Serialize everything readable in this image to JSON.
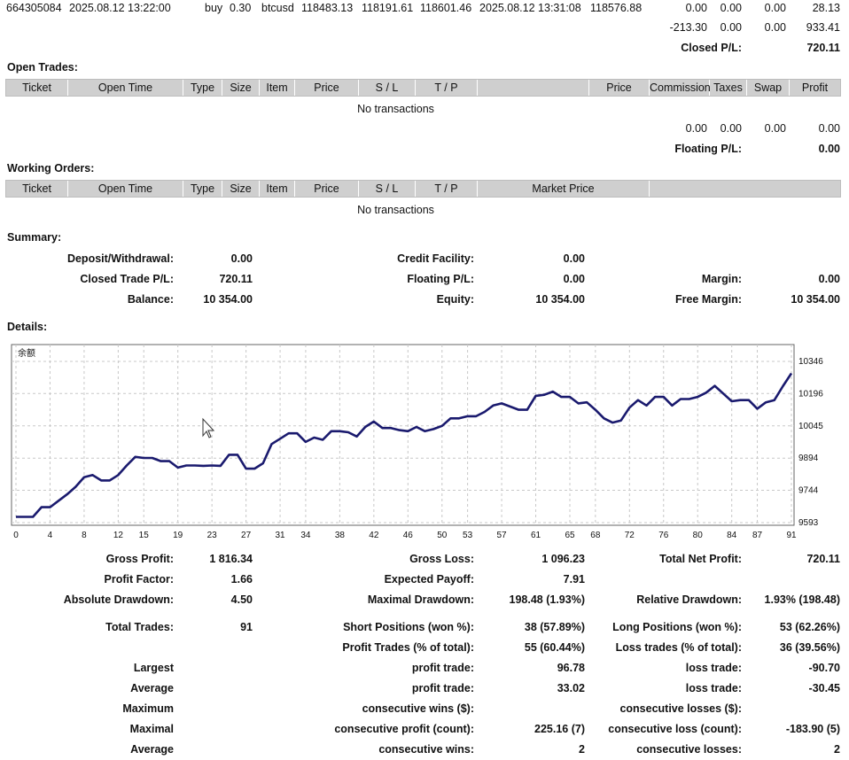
{
  "deal_row": {
    "ticket": "664305084",
    "open_time": "2025.08.12 13:22:00",
    "type": "buy",
    "size": "0.30",
    "item": "btcusd",
    "price": "118483.13",
    "sl": "118191.61",
    "tp": "118601.46",
    "close_time": "2025.08.12 13:31:08",
    "close_price": "118576.88",
    "commission": "0.00",
    "taxes": "0.00",
    "swap": "0.00",
    "profit": "28.13"
  },
  "closed_totals": {
    "commission": "-213.30",
    "taxes": "0.00",
    "swap": "0.00",
    "profit": "933.41",
    "closed_pl_label": "Closed P/L:",
    "closed_pl_value": "720.11"
  },
  "open_trades": {
    "title": "Open Trades:",
    "headers": [
      "Ticket",
      "Open Time",
      "Type",
      "Size",
      "Item",
      "Price",
      "S / L",
      "T / P",
      "",
      "Price",
      "Commission",
      "Taxes",
      "Swap",
      "Profit"
    ],
    "empty_message": "No transactions",
    "totals": {
      "commission": "0.00",
      "taxes": "0.00",
      "swap": "0.00",
      "profit": "0.00"
    },
    "floating_label": "Floating P/L:",
    "floating_value": "0.00"
  },
  "working_orders": {
    "title": "Working Orders:",
    "headers": [
      "Ticket",
      "Open Time",
      "Type",
      "Size",
      "Item",
      "Price",
      "S / L",
      "T / P",
      "Market Price",
      ""
    ],
    "empty_message": "No transactions"
  },
  "summary": {
    "title": "Summary:",
    "deposit_label": "Deposit/Withdrawal:",
    "deposit_value": "0.00",
    "credit_label": "Credit Facility:",
    "credit_value": "0.00",
    "closed_trade_label": "Closed Trade P/L:",
    "closed_trade_value": "720.11",
    "floating_label": "Floating P/L:",
    "floating_value": "0.00",
    "margin_label": "Margin:",
    "margin_value": "0.00",
    "balance_label": "Balance:",
    "balance_value": "10 354.00",
    "equity_label": "Equity:",
    "equity_value": "10 354.00",
    "free_margin_label": "Free Margin:",
    "free_margin_value": "10 354.00"
  },
  "details": {
    "title": "Details:",
    "gross_profit_label": "Gross Profit:",
    "gross_profit_value": "1 816.34",
    "gross_loss_label": "Gross Loss:",
    "gross_loss_value": "1 096.23",
    "net_profit_label": "Total Net Profit:",
    "net_profit_value": "720.11",
    "profit_factor_label": "Profit Factor:",
    "profit_factor_value": "1.66",
    "expected_payoff_label": "Expected Payoff:",
    "expected_payoff_value": "7.91",
    "abs_dd_label": "Absolute Drawdown:",
    "abs_dd_value": "4.50",
    "max_dd_label": "Maximal Drawdown:",
    "max_dd_value": "198.48 (1.93%)",
    "rel_dd_label": "Relative Drawdown:",
    "rel_dd_value": "1.93% (198.48)",
    "total_trades_label": "Total Trades:",
    "total_trades_value": "91",
    "short_label": "Short Positions (won %):",
    "short_value": "38 (57.89%)",
    "long_label": "Long Positions (won %):",
    "long_value": "53 (62.26%)",
    "profit_trades_label": "Profit Trades (% of total):",
    "profit_trades_value": "55 (60.44%)",
    "loss_trades_label": "Loss trades (% of total):",
    "loss_trades_value": "36 (39.56%)",
    "largest_label": "Largest",
    "largest_profit_label": "profit trade:",
    "largest_profit_value": "96.78",
    "largest_loss_label": "loss trade:",
    "largest_loss_value": "-90.70",
    "average_label": "Average",
    "avg_profit_label": "profit trade:",
    "avg_profit_value": "33.02",
    "avg_loss_label": "loss trade:",
    "avg_loss_value": "-30.45",
    "maximum_label": "Maximum",
    "max_wins_label": "consecutive wins ($):",
    "max_wins_value": "",
    "max_losses_label": "consecutive losses ($):",
    "max_losses_value": "",
    "maximal_label": "Maximal",
    "maximal_profit_label": "consecutive profit (count):",
    "maximal_profit_value": "225.16 (7)",
    "maximal_loss_label": "consecutive loss (count):",
    "maximal_loss_value": "-183.90 (5)",
    "average2_label": "Average",
    "avg_wins_label": "consecutive wins:",
    "avg_wins_value": "2",
    "avg_losses_label": "consecutive losses:",
    "avg_losses_value": "2"
  },
  "chart_data": {
    "type": "line",
    "title": "余额",
    "xlabel": "",
    "ylabel": "",
    "x_ticks": [
      0,
      4,
      8,
      12,
      15,
      19,
      23,
      27,
      31,
      34,
      38,
      42,
      46,
      50,
      53,
      57,
      61,
      65,
      68,
      72,
      76,
      80,
      84,
      87,
      91
    ],
    "y_ticks": [
      9593,
      9744,
      9894,
      10045,
      10196,
      10346
    ],
    "xlim": [
      0,
      91
    ],
    "ylim": [
      9593,
      10346
    ],
    "grid": true,
    "line_color": "#1a1a6e",
    "series": [
      {
        "name": "",
        "x": [
          0,
          1,
          2,
          3,
          4,
          5,
          6,
          7,
          8,
          9,
          10,
          11,
          12,
          13,
          14,
          15,
          16,
          17,
          18,
          19,
          20,
          21,
          22,
          23,
          24,
          25,
          26,
          27,
          28,
          29,
          30,
          31,
          32,
          33,
          34,
          35,
          36,
          37,
          38,
          39,
          40,
          41,
          42,
          43,
          44,
          45,
          46,
          47,
          48,
          49,
          50,
          51,
          52,
          53,
          54,
          55,
          56,
          57,
          58,
          59,
          60,
          61,
          62,
          63,
          64,
          65,
          66,
          67,
          68,
          69,
          70,
          71,
          72,
          73,
          74,
          75,
          76,
          77,
          78,
          79,
          80,
          81,
          82,
          83,
          84,
          85,
          86,
          87,
          88,
          89,
          90,
          91
        ],
        "values": [
          9620,
          9620,
          9620,
          9665,
          9665,
          9695,
          9725,
          9760,
          9805,
          9815,
          9790,
          9790,
          9815,
          9860,
          9900,
          9895,
          9895,
          9880,
          9880,
          9850,
          9860,
          9860,
          9858,
          9860,
          9858,
          9910,
          9910,
          9845,
          9845,
          9870,
          9960,
          9985,
          10010,
          10010,
          9970,
          9990,
          9980,
          10020,
          10020,
          10015,
          9995,
          10040,
          10065,
          10035,
          10035,
          10025,
          10020,
          10040,
          10020,
          10030,
          10045,
          10080,
          10080,
          10090,
          10090,
          10110,
          10140,
          10150,
          10135,
          10120,
          10120,
          10185,
          10190,
          10205,
          10180,
          10180,
          10150,
          10155,
          10120,
          10080,
          10060,
          10070,
          10130,
          10165,
          10140,
          10180,
          10180,
          10140,
          10170,
          10170,
          10180,
          10200,
          10232,
          10196,
          10160,
          10165,
          10165,
          10125,
          10155,
          10165,
          10230,
          10290
        ]
      }
    ]
  }
}
